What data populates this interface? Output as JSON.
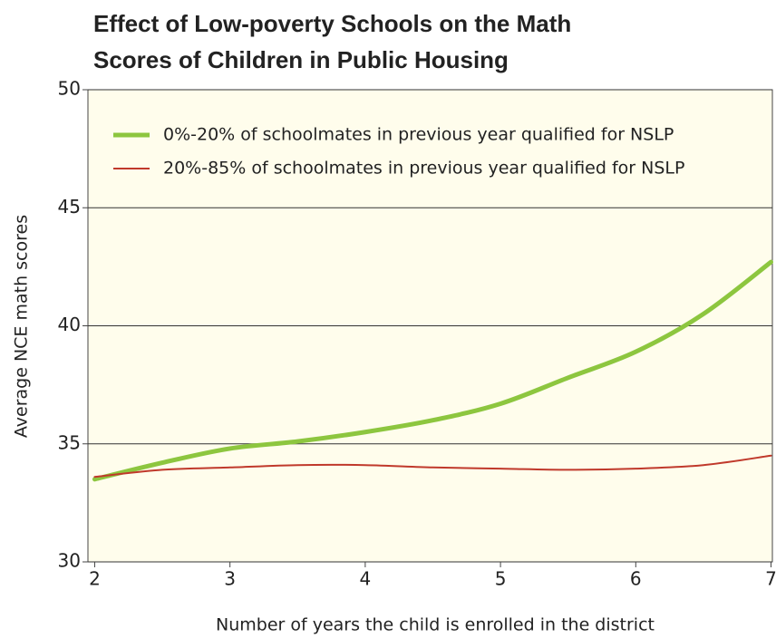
{
  "chart_data": {
    "type": "line",
    "title": "Effect of Low-poverty Schools on the Math Scores of Children in Public Housing",
    "x_label": "Number of years the child is enrolled in the district",
    "y_label": "Average NCE math scores",
    "x": [
      2,
      2.5,
      3,
      3.5,
      4,
      4.5,
      5,
      5.5,
      6,
      6.5,
      7
    ],
    "series": [
      {
        "name": "0%-20% of schoolmates in previous year qualified for NSLP",
        "color": "#8dc63f",
        "values": [
          33.5,
          34.2,
          34.8,
          35.1,
          35.5,
          36.0,
          36.7,
          37.8,
          38.9,
          40.5,
          42.7
        ]
      },
      {
        "name": "20%-85% of schoolmates in previous year qualified for NSLP",
        "color": "#c0392b",
        "values": [
          33.6,
          33.9,
          34.0,
          34.1,
          34.1,
          34.0,
          33.95,
          33.9,
          33.95,
          34.1,
          34.5
        ]
      }
    ],
    "xlim": [
      1.95,
      7.01
    ],
    "xticks": [
      2,
      3,
      4,
      5,
      6,
      7
    ],
    "ylim": [
      30,
      50
    ],
    "yticks": [
      30,
      35,
      40,
      45,
      50
    ],
    "grid": true,
    "legend": "upper left"
  }
}
